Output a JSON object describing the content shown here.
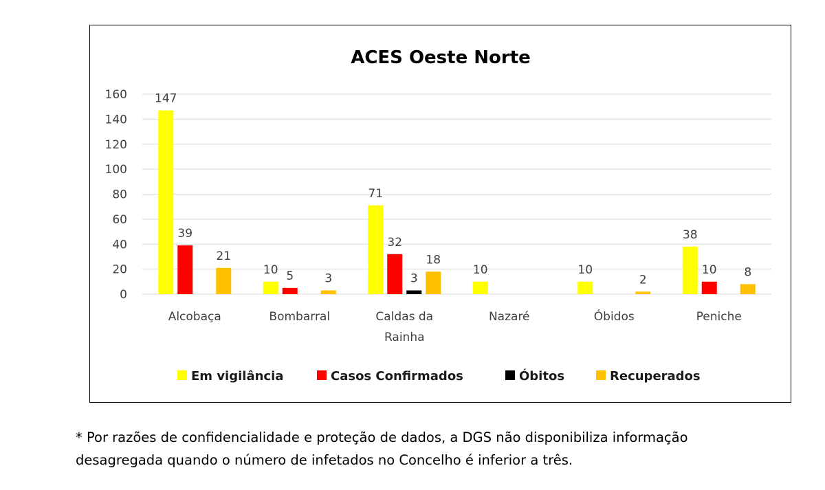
{
  "chart_data": {
    "type": "bar",
    "title": "ACES Oeste Norte",
    "categories": [
      [
        "Alcobaça"
      ],
      [
        "Bombarral"
      ],
      [
        "Caldas da",
        "Rainha"
      ],
      [
        "Nazaré"
      ],
      [
        "Óbidos"
      ],
      [
        "Peniche"
      ]
    ],
    "series": [
      {
        "name": "Em vigilância",
        "color": "#FFFF00",
        "values": [
          147,
          10,
          71,
          10,
          10,
          38
        ]
      },
      {
        "name": "Casos Confirmados",
        "color": "#FF0000",
        "values": [
          39,
          5,
          32,
          null,
          null,
          10
        ]
      },
      {
        "name": "Óbitos",
        "color": "#000000",
        "values": [
          null,
          null,
          3,
          null,
          null,
          null
        ]
      },
      {
        "name": "Recuperados",
        "color": "#FFC000",
        "values": [
          21,
          3,
          18,
          null,
          2,
          8
        ]
      }
    ],
    "ylim": [
      0,
      160
    ],
    "yticks": [
      0,
      20,
      40,
      60,
      80,
      100,
      120,
      140,
      160
    ],
    "grid": true,
    "legend_position": "bottom"
  },
  "footnote": {
    "line1": "* Por razões de confidencialidade e proteção de dados, a DGS não disponibiliza informação",
    "line2": "desagregada quando o número de infetados no Concelho é inferior a três."
  }
}
